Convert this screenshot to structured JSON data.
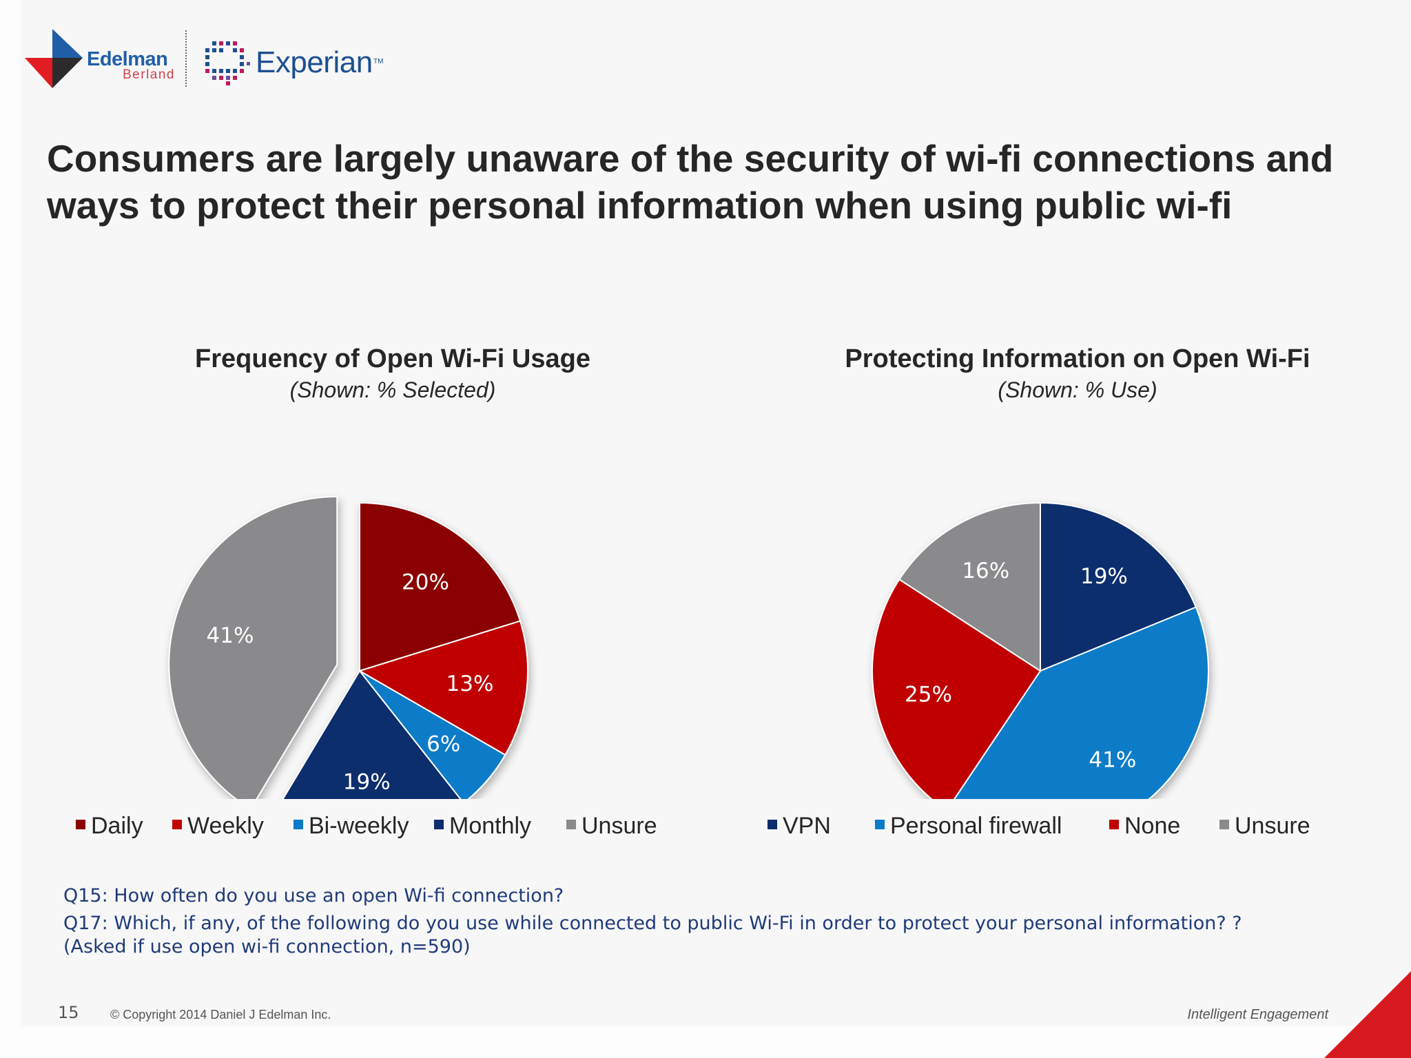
{
  "header": {
    "edelman_name": "Edelman",
    "edelman_sub": "Berland",
    "experian_name": "Experian",
    "experian_tm": "TM",
    "brand_colors": {
      "edelman_red": "#e31b23",
      "edelman_blue": "#1f5fa7",
      "experian_blue": "#1d4f91",
      "experian_pink": "#c2185b"
    }
  },
  "slide_title": "Consumers are largely unaware of the security of wi-fi connections and ways to protect their personal information when using public wi-fi",
  "chart_data": [
    {
      "type": "pie",
      "title": "Frequency of Open Wi-Fi Usage",
      "subtitle": "(Shown: % Selected)",
      "categories": [
        "Daily",
        "Weekly",
        "Bi-weekly",
        "Monthly",
        "Unsure"
      ],
      "values": [
        20,
        13,
        6,
        19,
        41
      ],
      "labels": [
        "20%",
        "13%",
        "6%",
        "19%",
        "41%"
      ],
      "colors": [
        "#8b0000",
        "#c00000",
        "#0a7bc8",
        "#0d2d6c",
        "#8a8a8c"
      ],
      "exploded": "Unsure",
      "legend_position": "bottom"
    },
    {
      "type": "pie",
      "title": "Protecting Information on Open Wi-Fi",
      "subtitle": "(Shown: % Use)",
      "categories": [
        "VPN",
        "Personal firewall",
        "None",
        "Unsure"
      ],
      "values": [
        19,
        41,
        25,
        16
      ],
      "labels": [
        "19%",
        "41%",
        "25%",
        "16%"
      ],
      "colors": [
        "#0d2d6c",
        "#0a7bc8",
        "#c00000",
        "#8a8a8c"
      ],
      "legend_position": "bottom"
    }
  ],
  "notes": {
    "q15": "Q15: How often do you use an open Wi-fi connection?",
    "q17": "Q17: Which, if any, of the following do you use while connected to public Wi-Fi in order to protect your personal information? ?",
    "q17_base": "(Asked if use open wi-fi connection, n=590)"
  },
  "footer": {
    "page_number": "15",
    "copyright": "© Copyright 2014 Daniel J Edelman Inc.",
    "tagline": "Intelligent Engagement",
    "corner_color": "#d71920"
  }
}
